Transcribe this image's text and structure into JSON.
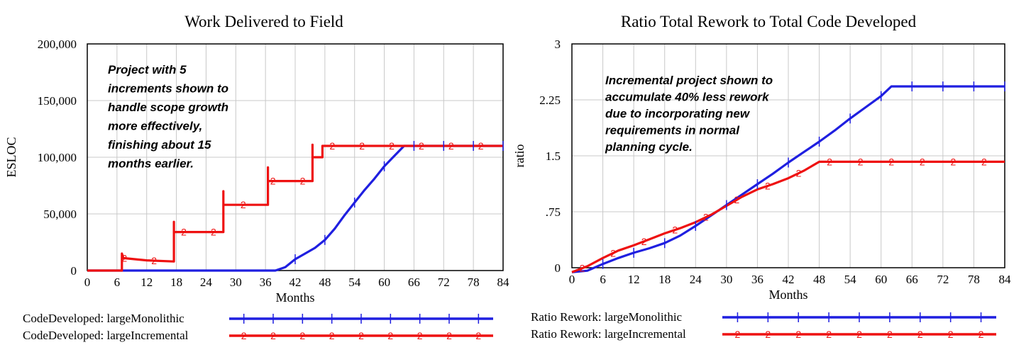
{
  "colors": {
    "monolithic": "#1f1fe0",
    "incremental": "#ee1111",
    "grid": "#c8c8c8"
  },
  "chart_data": [
    {
      "type": "line",
      "title": "Work Delivered to Field",
      "xlabel": "Months",
      "ylabel": "ESLOC",
      "xlim": [
        0,
        84
      ],
      "ylim": [
        0,
        200000
      ],
      "xticks": [
        "0",
        "6",
        "12",
        "18",
        "24",
        "30",
        "36",
        "42",
        "48",
        "54",
        "60",
        "66",
        "72",
        "78",
        "84"
      ],
      "yticks": [
        "0",
        "50,000",
        "100,000",
        "150,000",
        "200,000"
      ],
      "grid": true,
      "legend_position": "bottom",
      "annotation": [
        "Project with 5",
        "increments shown to",
        "handle scope growth",
        "more effectively,",
        "finishing about 15",
        "months earlier."
      ],
      "series": [
        {
          "name": "CodeDeveloped: largeMonolithic",
          "marker": "1",
          "x": [
            0,
            38,
            40,
            42,
            44,
            46,
            48,
            50,
            52,
            54,
            56,
            58,
            60,
            62,
            64,
            84
          ],
          "y": [
            0,
            0,
            3000,
            10000,
            15000,
            20000,
            27000,
            37000,
            49000,
            60000,
            71000,
            81000,
            92000,
            101000,
            110000,
            110000
          ]
        },
        {
          "name": "CodeDeveloped: largeIncremental",
          "marker": "2",
          "x": [
            0,
            7,
            7,
            7.3,
            12,
            17.5,
            17.5,
            17.5,
            17.7,
            27.5,
            27.5,
            27.5,
            27.7,
            36.5,
            36.5,
            36.5,
            36.7,
            45.5,
            45.5,
            45.5,
            45.7,
            47.5,
            47.5,
            84
          ],
          "y": [
            0,
            0,
            15000,
            11000,
            9000,
            8000,
            43000,
            34000,
            34000,
            34000,
            70000,
            58000,
            58000,
            58000,
            91000,
            79000,
            79000,
            79000,
            111000,
            100000,
            100000,
            100000,
            110000,
            110000
          ]
        }
      ]
    },
    {
      "type": "line",
      "title": "Ratio Total Rework to Total Code Developed",
      "xlabel": "Months",
      "ylabel": "ratio",
      "xlim": [
        0,
        84
      ],
      "ylim": [
        0,
        3
      ],
      "xticks": [
        "0",
        "6",
        "12",
        "18",
        "24",
        "30",
        "36",
        "42",
        "48",
        "54",
        "60",
        "66",
        "72",
        "78",
        "84"
      ],
      "yticks": [
        "0",
        ".75",
        "1.5",
        "2.25",
        "3"
      ],
      "grid": true,
      "legend_position": "bottom",
      "annotation": [
        "Incremental project shown to",
        "accumulate 40% less rework",
        "due to incorporating new",
        "requirements in normal",
        "planning cycle."
      ],
      "series": [
        {
          "name": "Ratio Rework: largeMonolithic",
          "marker": "1",
          "x": [
            0,
            3,
            6,
            9,
            12,
            15,
            18,
            21,
            24,
            27,
            30,
            33,
            36,
            39,
            42,
            45,
            48,
            51,
            54,
            57,
            60,
            62,
            84
          ],
          "y": [
            -0.06,
            -0.04,
            0.05,
            0.13,
            0.2,
            0.26,
            0.33,
            0.43,
            0.56,
            0.7,
            0.84,
            0.98,
            1.12,
            1.26,
            1.41,
            1.55,
            1.69,
            1.84,
            2.0,
            2.15,
            2.3,
            2.43,
            2.43
          ]
        },
        {
          "name": "Ratio Rework: largeIncremental",
          "marker": "2",
          "x": [
            0,
            3,
            6,
            9,
            12,
            15,
            18,
            21,
            24,
            27,
            30,
            33,
            36,
            39,
            42,
            45,
            48,
            84
          ],
          "y": [
            -0.06,
            0.02,
            0.13,
            0.23,
            0.3,
            0.38,
            0.46,
            0.53,
            0.61,
            0.71,
            0.83,
            0.95,
            1.05,
            1.12,
            1.2,
            1.3,
            1.42,
            1.42
          ]
        }
      ]
    }
  ]
}
